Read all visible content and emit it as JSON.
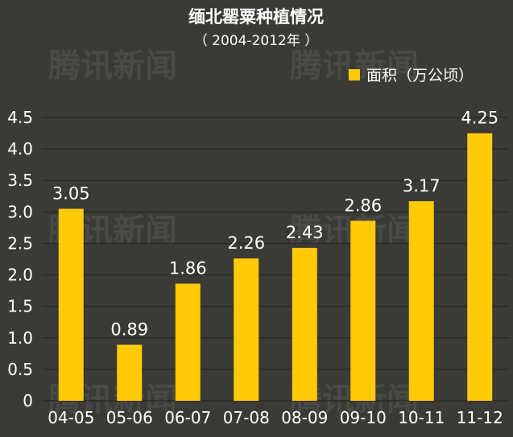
{
  "chart_data": {
    "type": "bar",
    "title": "缅北罂粟种植情况",
    "subtitle": "（ 2004-2012年 ）",
    "watermark": "腾讯新闻",
    "categories": [
      "04-05",
      "05-06",
      "06-07",
      "07-08",
      "08-09",
      "09-10",
      "10-11",
      "11-12"
    ],
    "series": [
      {
        "name": "面积（万公顷）",
        "values": [
          3.05,
          0.89,
          1.86,
          2.26,
          2.43,
          2.86,
          3.17,
          4.25
        ],
        "color": "#ffcb05"
      }
    ],
    "data_labels": [
      "3.05",
      "0.89",
      "1.86",
      "2.26",
      "2.43",
      "2.86",
      "3.17",
      "4.25"
    ],
    "yticks": [
      "0",
      "0.5",
      "1.0",
      "1.5",
      "2.0",
      "2.5",
      "3.0",
      "3.5",
      "4.0",
      "4.5"
    ],
    "ylim": [
      0,
      4.5
    ],
    "grid": true,
    "legend_position": "top-right"
  },
  "colors": {
    "background": "#3b3a36",
    "grid": "#2b2a27",
    "bar": "#ffcb05",
    "text": "#ffffff"
  }
}
